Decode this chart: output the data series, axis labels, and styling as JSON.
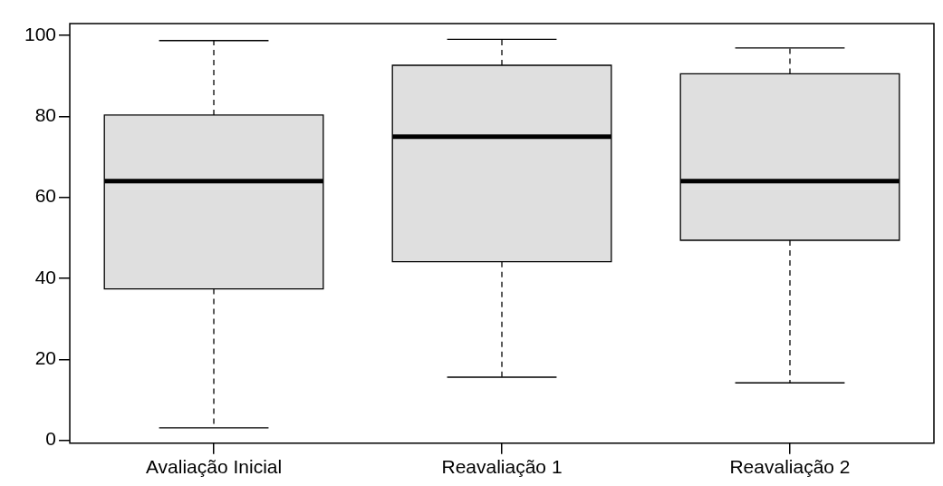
{
  "chart_data": {
    "type": "box",
    "categories": [
      "Avaliação Inicial",
      "Reavaliação 1",
      "Reavaliação 2"
    ],
    "boxes": [
      {
        "low": 3.1,
        "q1": 37.4,
        "median": 64.0,
        "q3": 80.3,
        "high": 98.7
      },
      {
        "low": 15.6,
        "q1": 44.1,
        "median": 75.0,
        "q3": 92.6,
        "high": 99.0
      },
      {
        "low": 14.2,
        "q1": 49.4,
        "median": 64.0,
        "q3": 90.5,
        "high": 96.9
      }
    ],
    "color": "#dfdfdf",
    "ylim": [
      -0.7,
      102.9
    ],
    "yticks": [
      0,
      20,
      40,
      60,
      80,
      100
    ]
  }
}
